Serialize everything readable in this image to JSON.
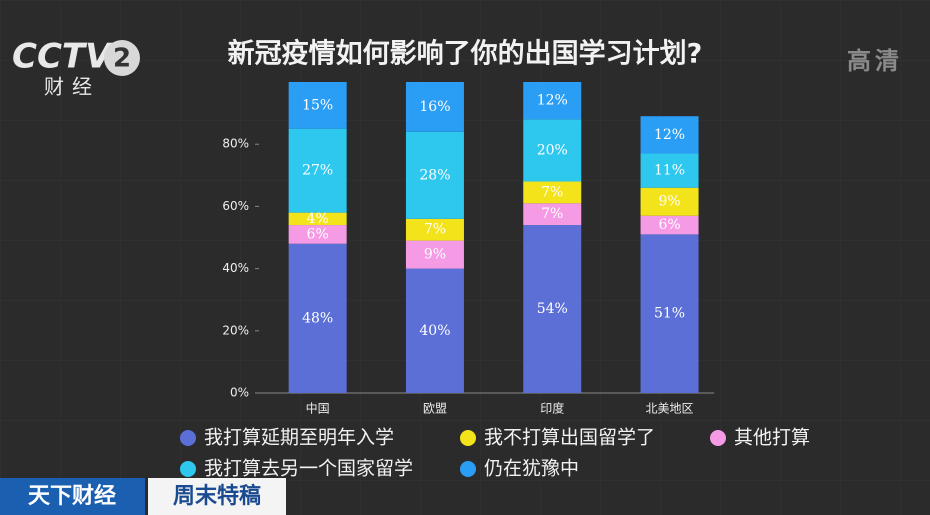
{
  "chart_data": {
    "type": "stacked_bar",
    "title": "新冠疫情如何影响了你的出国学习计划?",
    "categories": [
      "中国",
      "欧盟",
      "印度",
      "北美地区"
    ],
    "series": [
      {
        "name": "我打算延期至明年入学",
        "color": "#5b6fd6",
        "values": [
          48,
          40,
          54,
          51
        ],
        "value_labels": [
          "48%",
          "40%",
          "54%",
          "51%"
        ]
      },
      {
        "name": "其他打算",
        "color": "#f59be6",
        "values": [
          6,
          9,
          7,
          6
        ],
        "value_labels": [
          "6%",
          "9%",
          "7%",
          "6%"
        ]
      },
      {
        "name": "我不打算出国留学了",
        "color": "#f2e31a",
        "values": [
          4,
          7,
          7,
          9
        ],
        "value_labels": [
          "4%",
          "7%",
          "7%",
          "9%"
        ]
      },
      {
        "name": "我打算去另一个国家留学",
        "color": "#2ec7ee",
        "values": [
          27,
          28,
          20,
          11
        ],
        "value_labels": [
          "27%",
          "28%",
          "20%",
          "11%"
        ]
      },
      {
        "name": "仍在犹豫中",
        "color": "#2a9df4",
        "values": [
          15,
          16,
          12,
          12
        ],
        "value_labels": [
          "15%",
          "16%",
          "12%",
          "12%"
        ]
      }
    ],
    "ylim": [
      0,
      100
    ],
    "yticks": [
      {
        "value": 0,
        "label": "0%"
      },
      {
        "value": 20,
        "label": "20%"
      },
      {
        "value": 40,
        "label": "40%"
      },
      {
        "value": 60,
        "label": "60%"
      },
      {
        "value": 80,
        "label": "80%"
      }
    ],
    "grid": false
  },
  "overlay": {
    "logo": "CCTV",
    "channel": "2",
    "channel_name": "财经",
    "quality": "高清",
    "program": "天下财经",
    "segment": "周末特稿"
  }
}
